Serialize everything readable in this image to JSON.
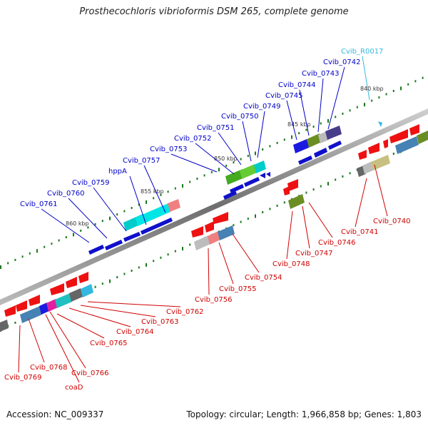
{
  "title": "Prosthecochloris vibrioformis DSM 265, complete genome",
  "footer": {
    "accession": "Accession: NC_009337",
    "topology": "Topology: circular; Length: 1,966,858 bp; Genes: 1,803"
  },
  "colors": {
    "forward_label": "#0000c8",
    "reverse_label": "#d00000",
    "rna_label": "#33b8e0",
    "backbone": "#8c8c8c",
    "tick": "#1a7a1a"
  },
  "ruler": [
    {
      "label": "860 kbp"
    },
    {
      "label": "855 kbp"
    },
    {
      "label": "850 kbp"
    },
    {
      "label": "845 kbp"
    },
    {
      "label": "840 kbp"
    }
  ],
  "forward_labels": [
    "Cvib_0761",
    "Cvib_0760",
    "Cvib_0759",
    "hppA",
    "Cvib_0757",
    "Cvib_0753",
    "Cvib_0752",
    "Cvib_0751",
    "Cvib_0750",
    "Cvib_0749",
    "Cvib_0745",
    "Cvib_0744",
    "Cvib_0743",
    "Cvib_0742"
  ],
  "rna_labels": [
    "Cvib_R0017"
  ],
  "reverse_labels": [
    "Cvib_0762",
    "Cvib_0763",
    "Cvib_0764",
    "Cvib_0765",
    "Cvib_0766",
    "coaD",
    "Cvib_0768",
    "Cvib_0769",
    "Cvib_0756",
    "Cvib_0755",
    "Cvib_0754",
    "Cvib_0748",
    "Cvib_0747",
    "Cvib_0746",
    "Cvib_0741",
    "Cvib_0740"
  ]
}
